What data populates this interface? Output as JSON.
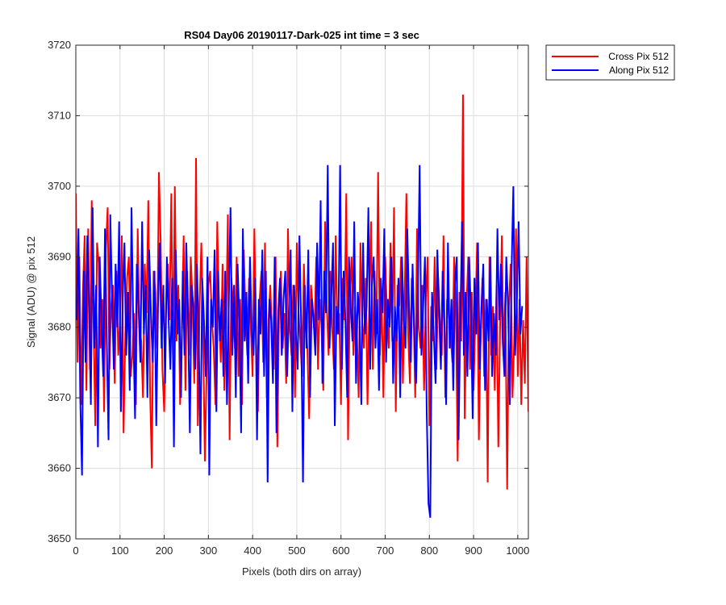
{
  "chart_data": {
    "type": "line",
    "title": "RS04 Day06 20190117-Dark-025 int time = 3 sec",
    "xlabel": "Pixels (both dirs on array)",
    "ylabel": "Signal (ADU) @ pix 512",
    "xlim": [
      0,
      1024
    ],
    "ylim": [
      3650,
      3720
    ],
    "xticks": [
      0,
      100,
      200,
      300,
      400,
      500,
      600,
      700,
      800,
      900,
      1000
    ],
    "yticks": [
      3650,
      3660,
      3670,
      3680,
      3690,
      3700,
      3710,
      3720
    ],
    "grid": true,
    "legend_position": "outside top-right",
    "series": [
      {
        "name": "Cross Pix 512",
        "color": "#ff0000",
        "x_start": 0,
        "x_step": 4,
        "values": [
          3699,
          3675,
          3690,
          3669,
          3685,
          3693,
          3671,
          3694,
          3674,
          3698,
          3681,
          3666,
          3692,
          3689,
          3677,
          3684,
          3668,
          3691,
          3697,
          3674,
          3683,
          3686,
          3672,
          3688,
          3676,
          3681,
          3693,
          3665,
          3679,
          3687,
          3690,
          3673,
          3676,
          3682,
          3669,
          3694,
          3680,
          3678,
          3670,
          3689,
          3682,
          3698,
          3671,
          3660,
          3688,
          3685,
          3677,
          3702,
          3692,
          3674,
          3668,
          3683,
          3689,
          3681,
          3699,
          3675,
          3700,
          3678,
          3686,
          3669,
          3679,
          3693,
          3671,
          3688,
          3676,
          3690,
          3684,
          3672,
          3704,
          3666,
          3683,
          3692,
          3679,
          3661,
          3674,
          3686,
          3688,
          3681,
          3677,
          3669,
          3695,
          3682,
          3675,
          3689,
          3671,
          3680,
          3696,
          3664,
          3687,
          3683,
          3677,
          3690,
          3673,
          3684,
          3669,
          3691,
          3682,
          3676,
          3687,
          3680,
          3673,
          3694,
          3678,
          3668,
          3684,
          3688,
          3675,
          3692,
          3670,
          3681,
          3686,
          3679,
          3674,
          3690,
          3663,
          3683,
          3688,
          3677,
          3682,
          3672,
          3694,
          3680,
          3676,
          3686,
          3670,
          3692,
          3682,
          3678,
          3673,
          3689,
          3681,
          3677,
          3667,
          3686,
          3683,
          3679,
          3690,
          3674,
          3684,
          3680,
          3671,
          3695,
          3683,
          3676,
          3688,
          3680,
          3674,
          3693,
          3679,
          3682,
          3669,
          3687,
          3681,
          3699,
          3664,
          3685,
          3690,
          3676,
          3683,
          3679,
          3670,
          3692,
          3681,
          3677,
          3687,
          3669,
          3683,
          3695,
          3674,
          3688,
          3679,
          3702,
          3676,
          3684,
          3670,
          3690,
          3682,
          3677,
          3692,
          3678,
          3697,
          3668,
          3686,
          3683,
          3690,
          3672,
          3684,
          3699,
          3679,
          3672,
          3687,
          3683,
          3670,
          3694,
          3680,
          3677,
          3686,
          3671,
          3684,
          3690,
          3666,
          3683,
          3678,
          3690,
          3674,
          3687,
          3681,
          3676,
          3693,
          3670,
          3684,
          3682,
          3679,
          3675,
          3690,
          3683,
          3661,
          3685,
          3678,
          3713,
          3667,
          3683,
          3690,
          3674,
          3685,
          3671,
          3681,
          3692,
          3664,
          3679,
          3687,
          3673,
          3684,
          3658,
          3690,
          3676,
          3683,
          3671,
          3686,
          3663,
          3680,
          3693,
          3676,
          3685,
          3657,
          3683,
          3689,
          3670,
          3678,
          3694,
          3673,
          3684,
          3669,
          3681,
          3672,
          3690,
          3668,
          3686,
          3667,
          3680,
          3675,
          3692,
          3666,
          3681,
          3676
        ]
      },
      {
        "name": "Along Pix 512",
        "color": "#0000ff",
        "x_start": 2,
        "x_step": 4,
        "values": [
          3681,
          3694,
          3670,
          3659,
          3688,
          3675,
          3693,
          3683,
          3669,
          3697,
          3677,
          3686,
          3663,
          3690,
          3681,
          3673,
          3694,
          3678,
          3664,
          3696,
          3684,
          3674,
          3689,
          3680,
          3695,
          3668,
          3684,
          3692,
          3676,
          3685,
          3671,
          3697,
          3680,
          3667,
          3689,
          3683,
          3675,
          3695,
          3679,
          3686,
          3670,
          3691,
          3682,
          3675,
          3688,
          3666,
          3683,
          3692,
          3677,
          3686,
          3672,
          3690,
          3681,
          3674,
          3687,
          3663,
          3691,
          3679,
          3684,
          3670,
          3688,
          3676,
          3692,
          3681,
          3665,
          3686,
          3683,
          3674,
          3689,
          3679,
          3662,
          3687,
          3681,
          3673,
          3690,
          3659,
          3684,
          3680,
          3691,
          3668,
          3688,
          3678,
          3684,
          3673,
          3688,
          3669,
          3683,
          3697,
          3676,
          3686,
          3670,
          3689,
          3681,
          3665,
          3694,
          3678,
          3685,
          3672,
          3690,
          3680,
          3676,
          3687,
          3664,
          3684,
          3679,
          3691,
          3673,
          3688,
          3658,
          3684,
          3681,
          3672,
          3690,
          3665,
          3682,
          3687,
          3676,
          3684,
          3688,
          3673,
          3682,
          3691,
          3668,
          3686,
          3679,
          3674,
          3693,
          3680,
          3658,
          3686,
          3677,
          3691,
          3670,
          3684,
          3681,
          3676,
          3692,
          3681,
          3698,
          3672,
          3688,
          3682,
          3703,
          3677,
          3684,
          3692,
          3666,
          3683,
          3679,
          3703,
          3674,
          3688,
          3681,
          3670,
          3690,
          3683,
          3678,
          3695,
          3672,
          3685,
          3681,
          3669,
          3692,
          3679,
          3683,
          3697,
          3674,
          3686,
          3690,
          3677,
          3684,
          3671,
          3687,
          3682,
          3694,
          3675,
          3684,
          3680,
          3690,
          3672,
          3683,
          3678,
          3687,
          3670,
          3690,
          3681,
          3677,
          3694,
          3683,
          3675,
          3689,
          3679,
          3672,
          3685,
          3703,
          3676,
          3683,
          3690,
          3668,
          3655,
          3653,
          3685,
          3679,
          3672,
          3691,
          3682,
          3674,
          3688,
          3680,
          3669,
          3692,
          3677,
          3684,
          3671,
          3686,
          3690,
          3664,
          3681,
          3695,
          3676,
          3685,
          3673,
          3690,
          3682,
          3667,
          3687,
          3679,
          3692,
          3674,
          3683,
          3689,
          3671,
          3684,
          3678,
          3690,
          3673,
          3682,
          3676,
          3694,
          3681,
          3689,
          3678,
          3673,
          3690,
          3683,
          3669,
          3688,
          3700,
          3676,
          3684,
          3695,
          3679,
          3683
        ]
      }
    ]
  }
}
